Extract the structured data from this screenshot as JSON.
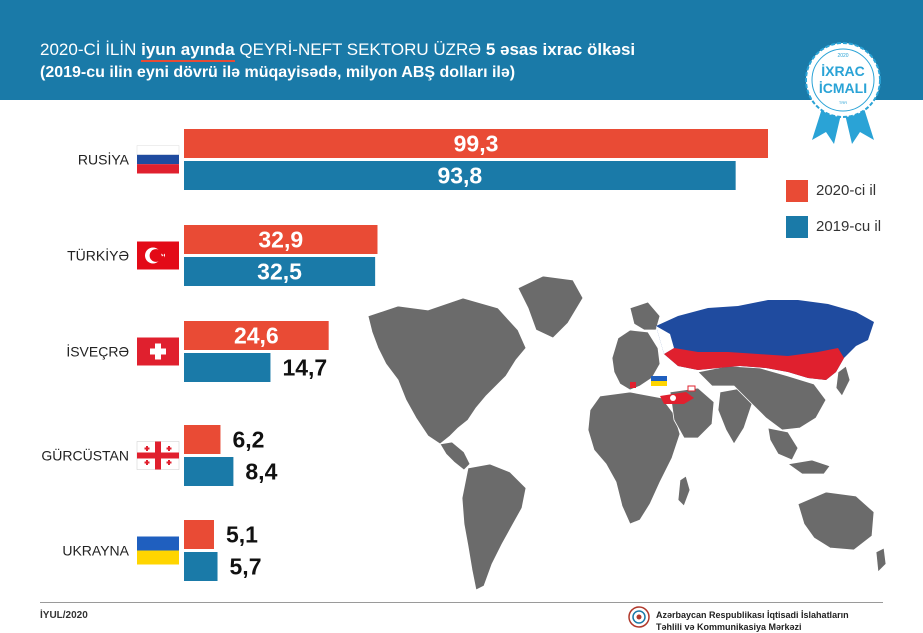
{
  "header": {
    "title_pre": "2020-Cİ İLİN",
    "title_highlight": "iyun ayında",
    "title_mid": "QEYRİ-NEFT SEKTORU ÜZRƏ",
    "title_bold": "5 əsas ixrac ölkəsi",
    "subtitle": "(2019-cu ilin eyni dövrü ilə müqayisədə, milyon ABŞ dolları ilə)"
  },
  "badge": {
    "line1": "İXRAC",
    "line2": "İCMALI",
    "year_top": "2020",
    "year_bottom": "TRR"
  },
  "legend": [
    {
      "label": "2020-ci il",
      "color": "#e94b35"
    },
    {
      "label": "2019-cu il",
      "color": "#1a7aa8"
    }
  ],
  "chart_data": {
    "type": "bar",
    "orientation": "horizontal",
    "categories": [
      "RUSİYA",
      "TÜRKİYƏ",
      "İSVEÇRƏ",
      "GÜRCÜSTAN",
      "UKRAYNA"
    ],
    "series": [
      {
        "name": "2020-ci il",
        "color": "#e94b35",
        "values": [
          99.3,
          32.9,
          24.6,
          6.2,
          5.1
        ],
        "labels": [
          "99,3",
          "32,9",
          "24,6",
          "6,2",
          "5,1"
        ]
      },
      {
        "name": "2019-cu il",
        "color": "#1a7aa8",
        "values": [
          93.8,
          32.5,
          14.7,
          8.4,
          5.7
        ],
        "labels": [
          "93,8",
          "32,5",
          "14,7",
          "8,4",
          "5,7"
        ]
      }
    ],
    "flags": [
      "russia-flag-icon",
      "turkey-flag-icon",
      "switzerland-flag-icon",
      "georgia-flag-icon",
      "ukraine-flag-icon"
    ],
    "legend_position": "right",
    "grid": false
  },
  "footer": {
    "date": "İYUL/2020",
    "org_line1": "Azərbaycan Respublikası İqtisadi İslahatların",
    "org_line2": "Təhlili və Kommunikasiya Mərkəzi"
  }
}
